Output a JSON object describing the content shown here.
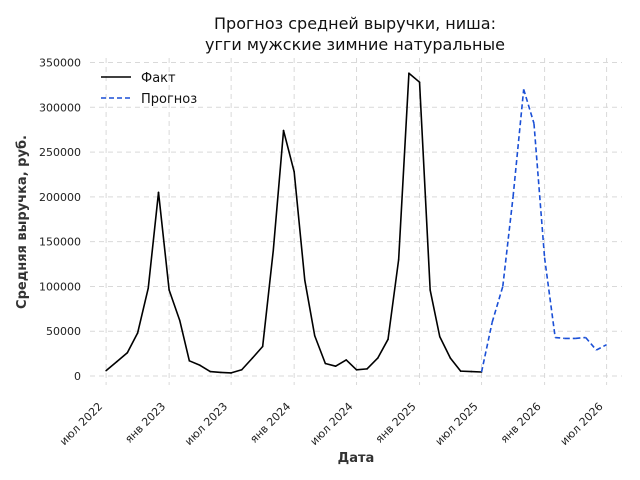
{
  "chart_data": {
    "type": "line",
    "title_line1": "Прогноз средней выручки, ниша:",
    "title_line2": "угги мужские зимние натуральные",
    "xlabel": "Дата",
    "ylabel": "Средняя выручка, руб.",
    "ylim": [
      -10000,
      355000
    ],
    "xlim": [
      "2022-05-15",
      "2026-08-15"
    ],
    "grid": true,
    "legend_position": "top-left",
    "yticks": [
      0,
      50000,
      100000,
      150000,
      200000,
      250000,
      300000,
      350000
    ],
    "xticks": [
      {
        "date": "2022-07-01",
        "label": "июл 2022"
      },
      {
        "date": "2023-01-01",
        "label": "янв 2023"
      },
      {
        "date": "2023-07-01",
        "label": "июл 2023"
      },
      {
        "date": "2024-01-01",
        "label": "янв 2024"
      },
      {
        "date": "2024-07-01",
        "label": "июл 2024"
      },
      {
        "date": "2025-01-01",
        "label": "янв 2025"
      },
      {
        "date": "2025-07-01",
        "label": "июл 2025"
      },
      {
        "date": "2026-01-01",
        "label": "янв 2026"
      },
      {
        "date": "2026-07-01",
        "label": "июл 2026"
      }
    ],
    "series": [
      {
        "name": "Факт",
        "color": "#000000",
        "style": "solid",
        "points": [
          [
            "2022-07-01",
            6000
          ],
          [
            "2022-08-01",
            16000
          ],
          [
            "2022-09-01",
            26000
          ],
          [
            "2022-10-01",
            48000
          ],
          [
            "2022-11-01",
            98000
          ],
          [
            "2022-12-01",
            205000
          ],
          [
            "2023-01-01",
            96000
          ],
          [
            "2023-02-01",
            62000
          ],
          [
            "2023-03-01",
            17000
          ],
          [
            "2023-04-01",
            12000
          ],
          [
            "2023-05-01",
            5000
          ],
          [
            "2023-06-01",
            4000
          ],
          [
            "2023-07-01",
            3500
          ],
          [
            "2023-08-01",
            7000
          ],
          [
            "2023-09-01",
            20000
          ],
          [
            "2023-10-01",
            33000
          ],
          [
            "2023-11-01",
            140000
          ],
          [
            "2023-12-01",
            274000
          ],
          [
            "2024-01-01",
            228000
          ],
          [
            "2024-02-01",
            107000
          ],
          [
            "2024-03-01",
            45000
          ],
          [
            "2024-04-01",
            14000
          ],
          [
            "2024-05-01",
            11000
          ],
          [
            "2024-06-01",
            18000
          ],
          [
            "2024-07-01",
            7000
          ],
          [
            "2024-08-01",
            8000
          ],
          [
            "2024-09-01",
            20000
          ],
          [
            "2024-10-01",
            41000
          ],
          [
            "2024-11-01",
            130000
          ],
          [
            "2024-12-01",
            338000
          ],
          [
            "2025-01-01",
            328000
          ],
          [
            "2025-02-01",
            96000
          ],
          [
            "2025-03-01",
            44000
          ],
          [
            "2025-04-01",
            20000
          ],
          [
            "2025-05-01",
            5500
          ],
          [
            "2025-06-01",
            5000
          ],
          [
            "2025-07-01",
            4500
          ]
        ]
      },
      {
        "name": "Прогноз",
        "color": "#1a4fd6",
        "style": "dashed",
        "points": [
          [
            "2025-07-01",
            4500
          ],
          [
            "2025-08-01",
            60000
          ],
          [
            "2025-09-01",
            100000
          ],
          [
            "2025-10-01",
            200000
          ],
          [
            "2025-11-01",
            320000
          ],
          [
            "2025-12-01",
            282000
          ],
          [
            "2026-01-01",
            132000
          ],
          [
            "2026-02-01",
            43000
          ],
          [
            "2026-03-01",
            42000
          ],
          [
            "2026-04-01",
            42000
          ],
          [
            "2026-05-01",
            43000
          ],
          [
            "2026-06-01",
            29000
          ],
          [
            "2026-07-01",
            35000
          ]
        ]
      }
    ]
  }
}
